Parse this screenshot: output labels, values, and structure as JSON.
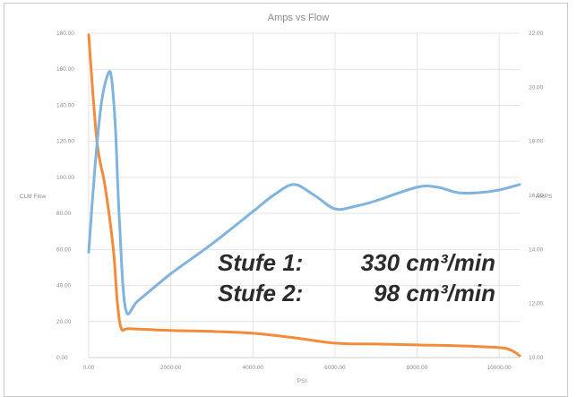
{
  "chart_data": {
    "type": "line",
    "title": "Amps vs Flow",
    "xlabel": "PSI",
    "ylabel_left": "CLM Flow",
    "ylabel_right": "AMPS",
    "xlim": [
      0,
      10500
    ],
    "ylim_left": [
      0,
      180
    ],
    "ylim_right": [
      10,
      22
    ],
    "x_ticks": [
      "0.00",
      "2000.00",
      "4000.00",
      "6000.00",
      "8000.00",
      "10000.00"
    ],
    "y_ticks_left": [
      "0.00",
      "20.00",
      "40.00",
      "60.00",
      "80.00",
      "100.00",
      "120.00",
      "140.00",
      "160.00",
      "180.00"
    ],
    "y_ticks_right": [
      "10.00",
      "12.00",
      "14.00",
      "16.00",
      "18.00",
      "20.00",
      "22.00"
    ],
    "grid": true,
    "series": [
      {
        "axis": "left",
        "color": "#f28b3a",
        "x": [
          0,
          200,
          400,
          600,
          700,
          800,
          1000,
          2000,
          3000,
          4000,
          5000,
          6000,
          7000,
          8000,
          9000,
          10000,
          10300,
          10500
        ],
        "y": [
          179,
          120,
          95,
          60,
          30,
          16,
          16,
          15,
          14.5,
          13.5,
          11,
          8,
          7.5,
          7,
          6.5,
          5.5,
          4,
          1
        ]
      },
      {
        "axis": "right",
        "color": "#7fb4e0",
        "x": [
          0,
          150,
          300,
          450,
          550,
          650,
          750,
          900,
          1200,
          2000,
          3000,
          4000,
          4500,
          5000,
          5500,
          6000,
          6500,
          7000,
          8000,
          8500,
          9000,
          9500,
          10000,
          10500
        ],
        "y": [
          13.9,
          17.0,
          19.3,
          20.4,
          20.4,
          18.5,
          15.0,
          11.8,
          12.1,
          13.1,
          14.2,
          15.4,
          16.0,
          16.4,
          16.0,
          15.5,
          15.6,
          15.8,
          16.3,
          16.3,
          16.1,
          16.1,
          16.2,
          16.4
        ]
      }
    ],
    "annotations": [
      {
        "label": "Stufe 1:",
        "value": "330 cm³/min"
      },
      {
        "label": "Stufe 2:",
        "value": "98 cm³/min"
      }
    ]
  }
}
